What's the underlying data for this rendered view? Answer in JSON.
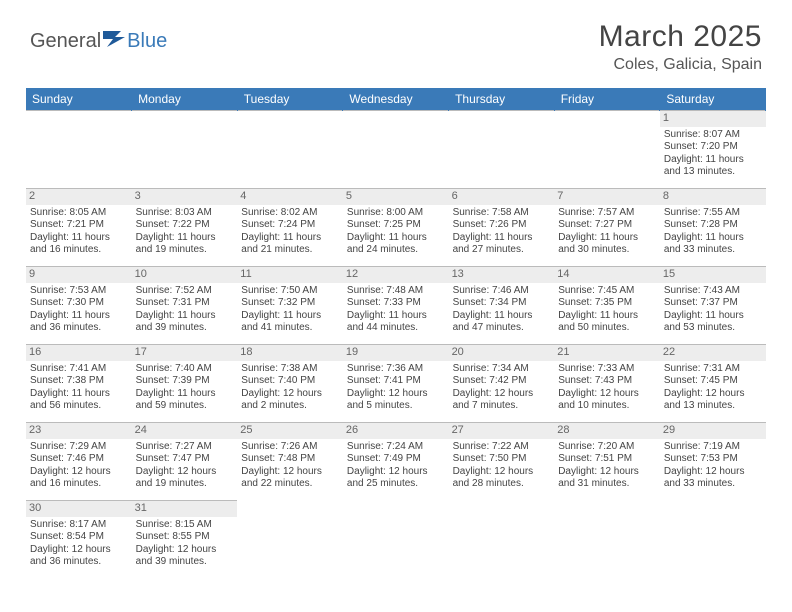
{
  "logo": {
    "text_left": "General",
    "text_right": "Blue"
  },
  "title": "March 2025",
  "location": "Coles, Galicia, Spain",
  "colors": {
    "header_bg": "#3a7ab8",
    "header_fg": "#ffffff",
    "daynum_bg": "#ededed",
    "border": "#bbbbbb",
    "text": "#444444"
  },
  "weekdays": [
    "Sunday",
    "Monday",
    "Tuesday",
    "Wednesday",
    "Thursday",
    "Friday",
    "Saturday"
  ],
  "weeks": [
    [
      {
        "empty": true
      },
      {
        "empty": true
      },
      {
        "empty": true
      },
      {
        "empty": true
      },
      {
        "empty": true
      },
      {
        "empty": true
      },
      {
        "num": "1",
        "sunrise": "Sunrise: 8:07 AM",
        "sunset": "Sunset: 7:20 PM",
        "day1": "Daylight: 11 hours",
        "day2": "and 13 minutes."
      }
    ],
    [
      {
        "num": "2",
        "sunrise": "Sunrise: 8:05 AM",
        "sunset": "Sunset: 7:21 PM",
        "day1": "Daylight: 11 hours",
        "day2": "and 16 minutes."
      },
      {
        "num": "3",
        "sunrise": "Sunrise: 8:03 AM",
        "sunset": "Sunset: 7:22 PM",
        "day1": "Daylight: 11 hours",
        "day2": "and 19 minutes."
      },
      {
        "num": "4",
        "sunrise": "Sunrise: 8:02 AM",
        "sunset": "Sunset: 7:24 PM",
        "day1": "Daylight: 11 hours",
        "day2": "and 21 minutes."
      },
      {
        "num": "5",
        "sunrise": "Sunrise: 8:00 AM",
        "sunset": "Sunset: 7:25 PM",
        "day1": "Daylight: 11 hours",
        "day2": "and 24 minutes."
      },
      {
        "num": "6",
        "sunrise": "Sunrise: 7:58 AM",
        "sunset": "Sunset: 7:26 PM",
        "day1": "Daylight: 11 hours",
        "day2": "and 27 minutes."
      },
      {
        "num": "7",
        "sunrise": "Sunrise: 7:57 AM",
        "sunset": "Sunset: 7:27 PM",
        "day1": "Daylight: 11 hours",
        "day2": "and 30 minutes."
      },
      {
        "num": "8",
        "sunrise": "Sunrise: 7:55 AM",
        "sunset": "Sunset: 7:28 PM",
        "day1": "Daylight: 11 hours",
        "day2": "and 33 minutes."
      }
    ],
    [
      {
        "num": "9",
        "sunrise": "Sunrise: 7:53 AM",
        "sunset": "Sunset: 7:30 PM",
        "day1": "Daylight: 11 hours",
        "day2": "and 36 minutes."
      },
      {
        "num": "10",
        "sunrise": "Sunrise: 7:52 AM",
        "sunset": "Sunset: 7:31 PM",
        "day1": "Daylight: 11 hours",
        "day2": "and 39 minutes."
      },
      {
        "num": "11",
        "sunrise": "Sunrise: 7:50 AM",
        "sunset": "Sunset: 7:32 PM",
        "day1": "Daylight: 11 hours",
        "day2": "and 41 minutes."
      },
      {
        "num": "12",
        "sunrise": "Sunrise: 7:48 AM",
        "sunset": "Sunset: 7:33 PM",
        "day1": "Daylight: 11 hours",
        "day2": "and 44 minutes."
      },
      {
        "num": "13",
        "sunrise": "Sunrise: 7:46 AM",
        "sunset": "Sunset: 7:34 PM",
        "day1": "Daylight: 11 hours",
        "day2": "and 47 minutes."
      },
      {
        "num": "14",
        "sunrise": "Sunrise: 7:45 AM",
        "sunset": "Sunset: 7:35 PM",
        "day1": "Daylight: 11 hours",
        "day2": "and 50 minutes."
      },
      {
        "num": "15",
        "sunrise": "Sunrise: 7:43 AM",
        "sunset": "Sunset: 7:37 PM",
        "day1": "Daylight: 11 hours",
        "day2": "and 53 minutes."
      }
    ],
    [
      {
        "num": "16",
        "sunrise": "Sunrise: 7:41 AM",
        "sunset": "Sunset: 7:38 PM",
        "day1": "Daylight: 11 hours",
        "day2": "and 56 minutes."
      },
      {
        "num": "17",
        "sunrise": "Sunrise: 7:40 AM",
        "sunset": "Sunset: 7:39 PM",
        "day1": "Daylight: 11 hours",
        "day2": "and 59 minutes."
      },
      {
        "num": "18",
        "sunrise": "Sunrise: 7:38 AM",
        "sunset": "Sunset: 7:40 PM",
        "day1": "Daylight: 12 hours",
        "day2": "and 2 minutes."
      },
      {
        "num": "19",
        "sunrise": "Sunrise: 7:36 AM",
        "sunset": "Sunset: 7:41 PM",
        "day1": "Daylight: 12 hours",
        "day2": "and 5 minutes."
      },
      {
        "num": "20",
        "sunrise": "Sunrise: 7:34 AM",
        "sunset": "Sunset: 7:42 PM",
        "day1": "Daylight: 12 hours",
        "day2": "and 7 minutes."
      },
      {
        "num": "21",
        "sunrise": "Sunrise: 7:33 AM",
        "sunset": "Sunset: 7:43 PM",
        "day1": "Daylight: 12 hours",
        "day2": "and 10 minutes."
      },
      {
        "num": "22",
        "sunrise": "Sunrise: 7:31 AM",
        "sunset": "Sunset: 7:45 PM",
        "day1": "Daylight: 12 hours",
        "day2": "and 13 minutes."
      }
    ],
    [
      {
        "num": "23",
        "sunrise": "Sunrise: 7:29 AM",
        "sunset": "Sunset: 7:46 PM",
        "day1": "Daylight: 12 hours",
        "day2": "and 16 minutes."
      },
      {
        "num": "24",
        "sunrise": "Sunrise: 7:27 AM",
        "sunset": "Sunset: 7:47 PM",
        "day1": "Daylight: 12 hours",
        "day2": "and 19 minutes."
      },
      {
        "num": "25",
        "sunrise": "Sunrise: 7:26 AM",
        "sunset": "Sunset: 7:48 PM",
        "day1": "Daylight: 12 hours",
        "day2": "and 22 minutes."
      },
      {
        "num": "26",
        "sunrise": "Sunrise: 7:24 AM",
        "sunset": "Sunset: 7:49 PM",
        "day1": "Daylight: 12 hours",
        "day2": "and 25 minutes."
      },
      {
        "num": "27",
        "sunrise": "Sunrise: 7:22 AM",
        "sunset": "Sunset: 7:50 PM",
        "day1": "Daylight: 12 hours",
        "day2": "and 28 minutes."
      },
      {
        "num": "28",
        "sunrise": "Sunrise: 7:20 AM",
        "sunset": "Sunset: 7:51 PM",
        "day1": "Daylight: 12 hours",
        "day2": "and 31 minutes."
      },
      {
        "num": "29",
        "sunrise": "Sunrise: 7:19 AM",
        "sunset": "Sunset: 7:53 PM",
        "day1": "Daylight: 12 hours",
        "day2": "and 33 minutes."
      }
    ],
    [
      {
        "num": "30",
        "sunrise": "Sunrise: 8:17 AM",
        "sunset": "Sunset: 8:54 PM",
        "day1": "Daylight: 12 hours",
        "day2": "and 36 minutes."
      },
      {
        "num": "31",
        "sunrise": "Sunrise: 8:15 AM",
        "sunset": "Sunset: 8:55 PM",
        "day1": "Daylight: 12 hours",
        "day2": "and 39 minutes."
      },
      {
        "empty": true
      },
      {
        "empty": true
      },
      {
        "empty": true
      },
      {
        "empty": true
      },
      {
        "empty": true
      }
    ]
  ]
}
